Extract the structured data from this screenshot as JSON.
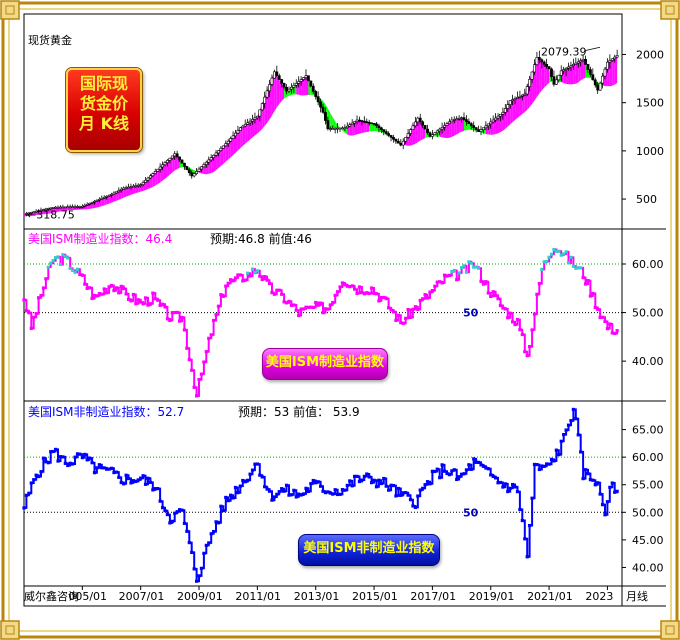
{
  "panel_title": "现货黄金",
  "badge_lines": [
    "国际现",
    "货金价",
    "月  K线"
  ],
  "footer_source": "威尔鑫咨询",
  "period_label": "月线",
  "chart_data": [
    {
      "type": "line",
      "title": "现货黄金",
      "xlim": [
        "2003/01",
        "2023/06"
      ],
      "ylim": [
        200,
        2150
      ],
      "yticks": [
        500,
        1000,
        1500,
        2000
      ],
      "labels": {
        "max": "2079.39",
        "min": "318.75"
      },
      "series": [
        {
          "x": [
            "2003/01",
            "2004/01",
            "2005/01",
            "2006/01",
            "2006/06",
            "2007/01",
            "2008/03",
            "2008/10",
            "2009/06",
            "2010/01",
            "2010/06",
            "2011/01",
            "2011/08",
            "2012/01",
            "2012/09",
            "2013/04",
            "2013/06",
            "2014/01",
            "2014/06",
            "2015/01",
            "2015/12",
            "2016/07",
            "2016/12",
            "2017/09",
            "2018/01",
            "2018/08",
            "2019/02",
            "2019/06",
            "2019/09",
            "2020/03",
            "2020/08",
            "2021/01",
            "2021/03",
            "2021/06",
            "2022/03",
            "2022/09",
            "2023/01",
            "2023/05"
          ],
          "values": [
            345,
            415,
            425,
            550,
            615,
            650,
            970,
            740,
            930,
            1100,
            1240,
            1360,
            1820,
            1620,
            1780,
            1400,
            1230,
            1240,
            1320,
            1280,
            1060,
            1340,
            1150,
            1320,
            1345,
            1200,
            1320,
            1400,
            1520,
            1590,
            1970,
            1850,
            1690,
            1830,
            1950,
            1630,
            1920,
            1990
          ]
        }
      ]
    },
    {
      "type": "line",
      "title": "美国ISM制造业指数",
      "title_label": "美国ISM制造业指数：46.4",
      "info_text": "预期:46.8  前值:46",
      "ylim": [
        32,
        67
      ],
      "yticks": [
        "60.00",
        "50.00",
        "40.00"
      ],
      "reference_line": 50,
      "reference_label": "50",
      "series": [
        {
          "x": [
            "2003/01",
            "2003/04",
            "2003/10",
            "2004/01",
            "2004/06",
            "2005/01",
            "2005/06",
            "2006/01",
            "2006/06",
            "2007/01",
            "2007/06",
            "2008/01",
            "2008/06",
            "2008/12",
            "2009/06",
            "2009/12",
            "2010/06",
            "2011/01",
            "2011/06",
            "2011/12",
            "2012/06",
            "2012/12",
            "2013/06",
            "2013/12",
            "2014/06",
            "2014/12",
            "2015/06",
            "2015/12",
            "2016/06",
            "2016/12",
            "2017/06",
            "2017/12",
            "2018/06",
            "2018/12",
            "2019/06",
            "2019/12",
            "2020/04",
            "2020/10",
            "2021/03",
            "2021/09",
            "2022/03",
            "2022/09",
            "2023/01",
            "2023/05"
          ],
          "values": [
            53,
            47,
            57,
            61,
            61,
            57,
            53,
            56,
            54,
            52,
            53,
            49,
            49,
            33,
            46,
            56,
            57,
            59,
            55,
            53,
            50,
            51,
            51,
            57,
            55,
            55,
            52,
            48,
            51,
            54,
            57,
            58,
            60,
            55,
            51,
            48,
            41,
            59,
            64,
            61,
            58,
            51,
            47,
            46.4
          ]
        }
      ]
    },
    {
      "type": "line",
      "title": "美国ISM非制造业指数",
      "title_label": "美国ISM非制造业指数：52.7",
      "info_text": "预期：53  前值： 53.9",
      "ylim": [
        37,
        70
      ],
      "yticks": [
        "65.00",
        "60.00",
        "55.00",
        "50.00",
        "45.00",
        "40.00"
      ],
      "reference_line": 50,
      "reference_label": "50",
      "series": [
        {
          "x": [
            "2003/01",
            "2003/06",
            "2004/01",
            "2004/06",
            "2005/01",
            "2005/06",
            "2006/01",
            "2006/06",
            "2007/01",
            "2007/06",
            "2008/01",
            "2008/06",
            "2008/12",
            "2009/06",
            "2009/12",
            "2010/06",
            "2011/01",
            "2011/06",
            "2011/12",
            "2012/06",
            "2012/12",
            "2013/06",
            "2013/12",
            "2014/06",
            "2014/12",
            "2015/06",
            "2015/12",
            "2016/06",
            "2016/12",
            "2017/06",
            "2017/12",
            "2018/06",
            "2018/12",
            "2019/06",
            "2019/12",
            "2020/04",
            "2020/07",
            "2020/12",
            "2021/06",
            "2021/11",
            "2022/03",
            "2022/08",
            "2022/12",
            "2023/02",
            "2023/05"
          ],
          "values": [
            51,
            57,
            61,
            59,
            60,
            58,
            57,
            56,
            56,
            55,
            49,
            50,
            38,
            46,
            52,
            55,
            59,
            53,
            54,
            53,
            55,
            54,
            54,
            56,
            56,
            55,
            53,
            52,
            56,
            58,
            56,
            59,
            57,
            55,
            54,
            42,
            58,
            58,
            62,
            69,
            57,
            56,
            50,
            55,
            52.7
          ]
        }
      ]
    }
  ],
  "x_axis_ticks": [
    "005/01",
    "2007/01",
    "2009/01",
    "2011/01",
    "2013/01",
    "2015/01",
    "2017/01",
    "2019/01",
    "2021/01",
    "2023"
  ],
  "colors": {
    "gold_line": "#000000",
    "gold_up_fill": "#ff00ff",
    "gold_down_fill": "#00ff00",
    "ism": "#ff00ff",
    "ism_hi": "#33cccc",
    "nm": "#0000ff",
    "frame": "#b8860b"
  }
}
